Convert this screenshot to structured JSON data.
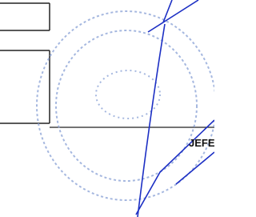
{
  "signature_block": {
    "label": "JEFE"
  }
}
